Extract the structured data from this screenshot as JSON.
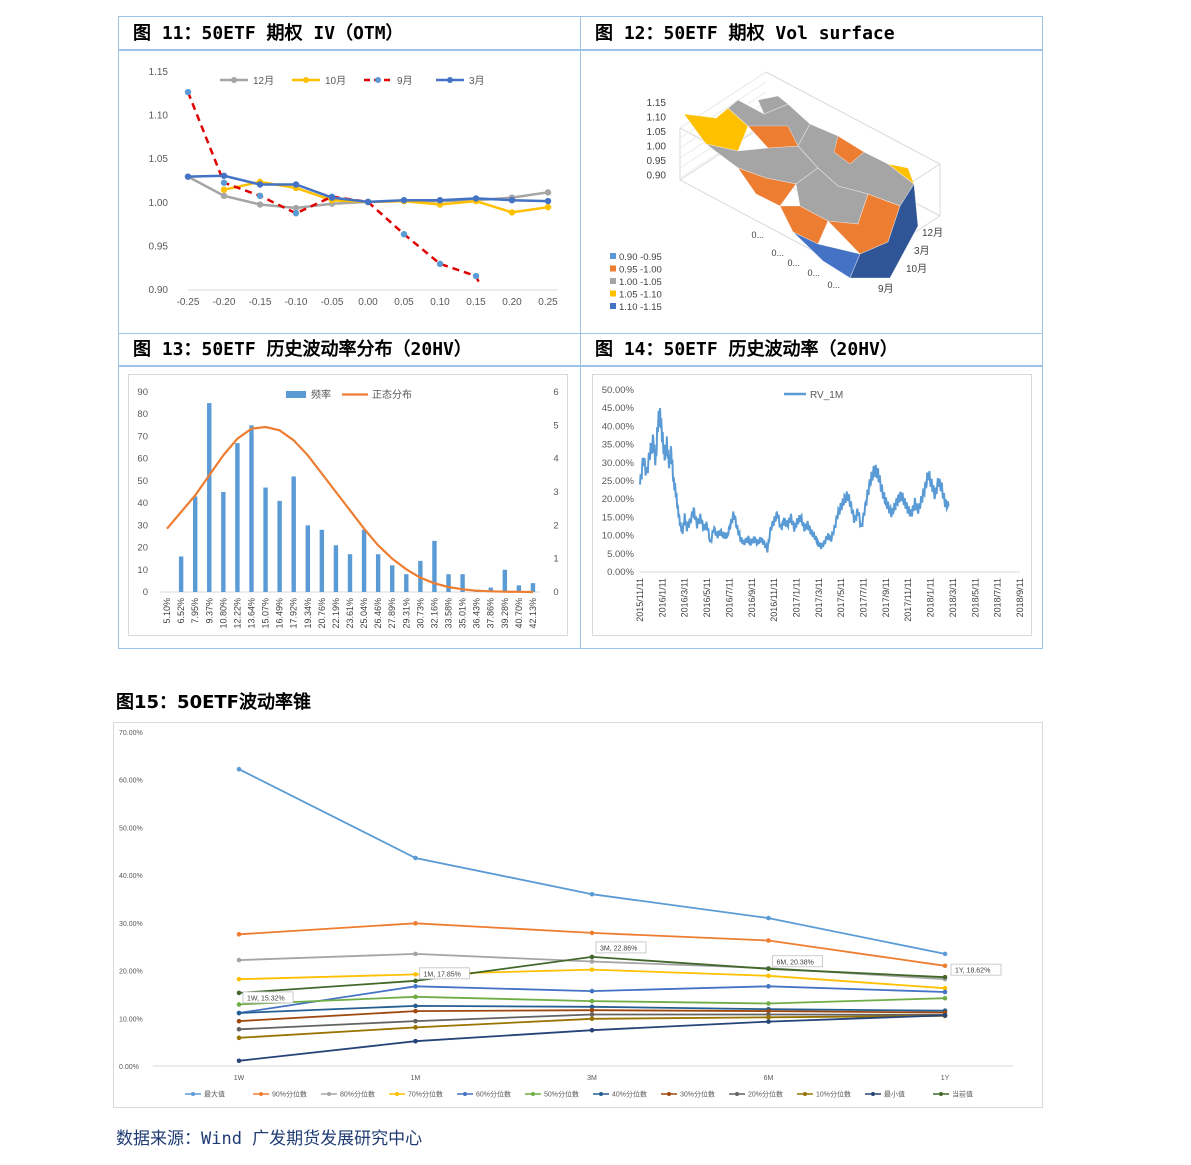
{
  "titles": {
    "fig11": "图 11：50ETF 期权 IV（OTM）",
    "fig12": "图 12：50ETF 期权 Vol surface",
    "fig13": "图 13：50ETF 历史波动率分布（20HV）",
    "fig14": "图 14：50ETF 历史波动率（20HV）",
    "fig15": "图15：50ETF波动率锥",
    "source": "数据来源：Wind 广发期货发展研究中心"
  },
  "colors": {
    "gray": "#a5a5a5",
    "gold": "#ffc000",
    "red": "#e00000",
    "blue": "#4472c4",
    "lightblue": "#5b9bd5",
    "orange": "#ed7d31",
    "border": "#9dc3e6"
  },
  "chart_data": [
    {
      "id": "fig11",
      "type": "line",
      "x": [
        -0.25,
        -0.2,
        -0.15,
        -0.1,
        -0.05,
        0.0,
        0.05,
        0.1,
        0.15,
        0.2,
        0.25
      ],
      "xticks": [
        "-0.25",
        "-0.20",
        "-0.15",
        "-0.10",
        "-0.05",
        "0.00",
        "0.05",
        "0.10",
        "0.15",
        "0.20",
        "0.25"
      ],
      "yticks": [
        "0.90",
        "0.95",
        "1.00",
        "1.05",
        "1.10",
        "1.15"
      ],
      "ylim": [
        0.9,
        1.15
      ],
      "legend_position": "top",
      "series": [
        {
          "name": "12月",
          "color": "#a5a5a5",
          "dash": false,
          "values": [
            1.03,
            1.008,
            0.998,
            0.994,
            0.999,
            1.001,
            1.002,
            1.002,
            1.003,
            1.006,
            1.012
          ]
        },
        {
          "name": "10月",
          "color": "#ffc000",
          "dash": false,
          "values": [
            null,
            1.015,
            1.024,
            1.017,
            1.003,
            1.001,
            1.002,
            0.998,
            1.002,
            0.989,
            0.995
          ]
        },
        {
          "name": "9月",
          "color": "#e00000",
          "dash": true,
          "values": [
            1.127,
            1.023,
            1.008,
            0.988,
            1.007,
            1.001,
            0.964,
            0.93,
            0.916,
            null,
            null
          ]
        },
        {
          "name": "3月",
          "color": "#4472c4",
          "dash": false,
          "values": [
            1.03,
            1.031,
            1.021,
            1.021,
            1.006,
            1.001,
            1.003,
            1.003,
            1.005,
            1.003,
            1.002
          ]
        }
      ]
    },
    {
      "id": "fig12",
      "type": "surface",
      "zticks": [
        "1.15",
        "1.10",
        "1.05",
        "1.00",
        "0.95",
        "0.90"
      ],
      "month_labels": [
        "12月",
        "3月",
        "10月",
        "9月"
      ],
      "strike_labels": [
        "0...",
        "0...",
        "0...",
        "0...",
        "0..."
      ],
      "legend": [
        {
          "label": "0.90 -0.95",
          "color": "#5b9bd5"
        },
        {
          "label": "0.95 -1.00",
          "color": "#ed7d31"
        },
        {
          "label": "1.00 -1.05",
          "color": "#a5a5a5"
        },
        {
          "label": "1.05 -1.10",
          "color": "#ffc000"
        },
        {
          "label": "1.10 -1.15",
          "color": "#4472c4"
        }
      ]
    },
    {
      "id": "fig13",
      "type": "bar",
      "categories": [
        "5.10%",
        "6.52%",
        "7.95%",
        "9.37%",
        "10.80%",
        "12.22%",
        "13.64%",
        "15.07%",
        "16.49%",
        "17.92%",
        "19.34%",
        "20.76%",
        "22.19%",
        "23.61%",
        "25.04%",
        "26.46%",
        "27.89%",
        "29.31%",
        "30.73%",
        "32.16%",
        "33.58%",
        "35.01%",
        "36.43%",
        "37.86%",
        "39.28%",
        "40.70%",
        "42.13%"
      ],
      "values": [
        0,
        16,
        43,
        85,
        45,
        67,
        75,
        47,
        41,
        52,
        30,
        28,
        21,
        17,
        28,
        17,
        12,
        8,
        14,
        23,
        8,
        8,
        1,
        2,
        10,
        3,
        4
      ],
      "normal": [
        1.9,
        2.4,
        2.9,
        3.5,
        4.1,
        4.6,
        4.9,
        4.95,
        4.85,
        4.55,
        4.1,
        3.55,
        3.0,
        2.45,
        1.9,
        1.4,
        1.0,
        0.68,
        0.43,
        0.26,
        0.15,
        0.08,
        0.04,
        0.02,
        0.01,
        0.005,
        0.0
      ],
      "yticks_left": [
        "0",
        "10",
        "20",
        "30",
        "40",
        "50",
        "60",
        "70",
        "80",
        "90"
      ],
      "yticks_right": [
        "0",
        "1",
        "2",
        "3",
        "4",
        "5",
        "6"
      ],
      "ylim_left": [
        0,
        90
      ],
      "ylim_right": [
        0,
        6
      ],
      "legend": [
        {
          "name": "频率",
          "color": "#5b9bd5"
        },
        {
          "name": "正态分布",
          "color": "#ed7d31"
        }
      ],
      "legend_position": "top"
    },
    {
      "id": "fig14",
      "type": "line",
      "series_name": "RV_1M",
      "color": "#5b9bd5",
      "x_dates": [
        "2015/11/11",
        "2016/1/11",
        "2016/3/11",
        "2016/5/11",
        "2016/7/11",
        "2016/9/11",
        "2016/11/11",
        "2017/1/11",
        "2017/3/11",
        "2017/5/11",
        "2017/7/11",
        "2017/9/11",
        "2017/11/11",
        "2018/1/11",
        "2018/3/11",
        "2018/5/11",
        "2018/7/11",
        "2018/9/11"
      ],
      "yticks": [
        "0.00%",
        "5.00%",
        "10.00%",
        "15.00%",
        "20.00%",
        "25.00%",
        "30.00%",
        "35.00%",
        "40.00%",
        "45.00%",
        "50.00%"
      ],
      "ylim": [
        0,
        50
      ],
      "keypoints_month_pct": [
        [
          0,
          24
        ],
        [
          0.3,
          31
        ],
        [
          0.6,
          27
        ],
        [
          0.9,
          33
        ],
        [
          1.2,
          36
        ],
        [
          1.4,
          30
        ],
        [
          1.6,
          41
        ],
        [
          1.8,
          43
        ],
        [
          2.0,
          37
        ],
        [
          2.2,
          32
        ],
        [
          2.4,
          35
        ],
        [
          2.6,
          30
        ],
        [
          2.8,
          33
        ],
        [
          3.0,
          25
        ],
        [
          3.2,
          22
        ],
        [
          3.4,
          17
        ],
        [
          3.6,
          13
        ],
        [
          3.8,
          11
        ],
        [
          4.0,
          15
        ],
        [
          4.2,
          12
        ],
        [
          4.5,
          14
        ],
        [
          4.8,
          17
        ],
        [
          5.1,
          13
        ],
        [
          5.4,
          15
        ],
        [
          5.7,
          12
        ],
        [
          6.0,
          13
        ],
        [
          6.3,
          8
        ],
        [
          6.6,
          12
        ],
        [
          6.9,
          10
        ],
        [
          7.2,
          11
        ],
        [
          7.5,
          10
        ],
        [
          7.8,
          10
        ],
        [
          8.1,
          13
        ],
        [
          8.4,
          16
        ],
        [
          8.7,
          12
        ],
        [
          9.0,
          9
        ],
        [
          9.3,
          8
        ],
        [
          9.6,
          9
        ],
        [
          9.9,
          8
        ],
        [
          10.2,
          9
        ],
        [
          10.5,
          8
        ],
        [
          10.8,
          9
        ],
        [
          11.1,
          8
        ],
        [
          11.4,
          6
        ],
        [
          11.7,
          12
        ],
        [
          12.0,
          14
        ],
        [
          12.3,
          16
        ],
        [
          12.6,
          12
        ],
        [
          12.9,
          14
        ],
        [
          13.2,
          13
        ],
        [
          13.5,
          15
        ],
        [
          13.8,
          12
        ],
        [
          14.1,
          14
        ],
        [
          14.4,
          15
        ],
        [
          14.7,
          12
        ],
        [
          15.0,
          13
        ],
        [
          15.3,
          11
        ],
        [
          15.6,
          10
        ],
        [
          15.9,
          8
        ],
        [
          16.2,
          7
        ],
        [
          16.5,
          8
        ],
        [
          16.8,
          10
        ],
        [
          17.1,
          9
        ],
        [
          17.4,
          12
        ],
        [
          17.7,
          16
        ],
        [
          18.0,
          18
        ],
        [
          18.3,
          20
        ],
        [
          18.6,
          21
        ],
        [
          18.9,
          18
        ],
        [
          19.2,
          14
        ],
        [
          19.5,
          17
        ],
        [
          19.8,
          12
        ],
        [
          20.1,
          17
        ],
        [
          20.4,
          22
        ],
        [
          20.7,
          26
        ],
        [
          21.0,
          28
        ],
        [
          21.3,
          27
        ],
        [
          21.6,
          23
        ],
        [
          21.9,
          20
        ],
        [
          22.2,
          18
        ],
        [
          22.5,
          16
        ],
        [
          22.8,
          18
        ],
        [
          23.1,
          20
        ],
        [
          23.4,
          21
        ],
        [
          23.7,
          19
        ],
        [
          24.0,
          17
        ],
        [
          24.3,
          16
        ],
        [
          24.6,
          19
        ],
        [
          24.9,
          17
        ],
        [
          25.2,
          20
        ],
        [
          25.5,
          23
        ],
        [
          25.8,
          27
        ],
        [
          26.1,
          24
        ],
        [
          26.4,
          21
        ],
        [
          26.7,
          25
        ],
        [
          27.0,
          23
        ],
        [
          27.3,
          19
        ],
        [
          27.6,
          18
        ]
      ],
      "legend_position": "top"
    },
    {
      "id": "fig15",
      "type": "line",
      "categories": [
        "1W",
        "1M",
        "3M",
        "6M",
        "1Y"
      ],
      "yticks": [
        "0.00%",
        "10.00%",
        "20.00%",
        "30.00%",
        "40.00%",
        "50.00%",
        "60.00%",
        "70.00%"
      ],
      "ylim": [
        0,
        70
      ],
      "legend_position": "bottom",
      "series": [
        {
          "name": "最大值",
          "color": "#5b9bd5",
          "values": [
            62.2,
            43.6,
            36.0,
            31.0,
            23.5
          ]
        },
        {
          "name": "90%分位数",
          "color": "#ed7d31",
          "values": [
            27.6,
            29.9,
            27.9,
            26.3,
            21.0
          ]
        },
        {
          "name": "80%分位数",
          "color": "#a5a5a5",
          "values": [
            22.2,
            23.5,
            21.9,
            20.5,
            18.2
          ]
        },
        {
          "name": "70%分位数",
          "color": "#ffc000",
          "values": [
            18.2,
            19.2,
            20.2,
            18.9,
            16.3
          ]
        },
        {
          "name": "60%分位数",
          "color": "#4472c4",
          "values": [
            11.1,
            16.7,
            15.7,
            16.7,
            15.5
          ]
        },
        {
          "name": "50%分位数",
          "color": "#70ad47",
          "values": [
            12.9,
            14.5,
            13.6,
            13.1,
            14.2
          ]
        },
        {
          "name": "40%分位数",
          "color": "#255e91",
          "values": [
            11.1,
            12.6,
            12.4,
            11.9,
            11.6
          ]
        },
        {
          "name": "30%分位数",
          "color": "#9e480e",
          "values": [
            9.4,
            11.5,
            11.7,
            11.5,
            11.2
          ]
        },
        {
          "name": "20%分位数",
          "color": "#636363",
          "values": [
            7.7,
            9.4,
            10.8,
            10.8,
            10.7
          ]
        },
        {
          "name": "10%分位数",
          "color": "#997300",
          "values": [
            5.9,
            8.1,
            9.9,
            10.2,
            10.5
          ]
        },
        {
          "name": "最小值",
          "color": "#264478",
          "values": [
            1.1,
            5.2,
            7.5,
            9.3,
            10.6
          ]
        },
        {
          "name": "当前值",
          "color": "#43682b",
          "values": [
            15.32,
            17.85,
            22.86,
            20.38,
            18.62
          ]
        }
      ],
      "annotations": [
        "1W, 15.32%",
        "1M, 17.85%",
        "3M, 22.86%",
        "6M, 20.38%",
        "1Y, 18.62%"
      ]
    }
  ]
}
